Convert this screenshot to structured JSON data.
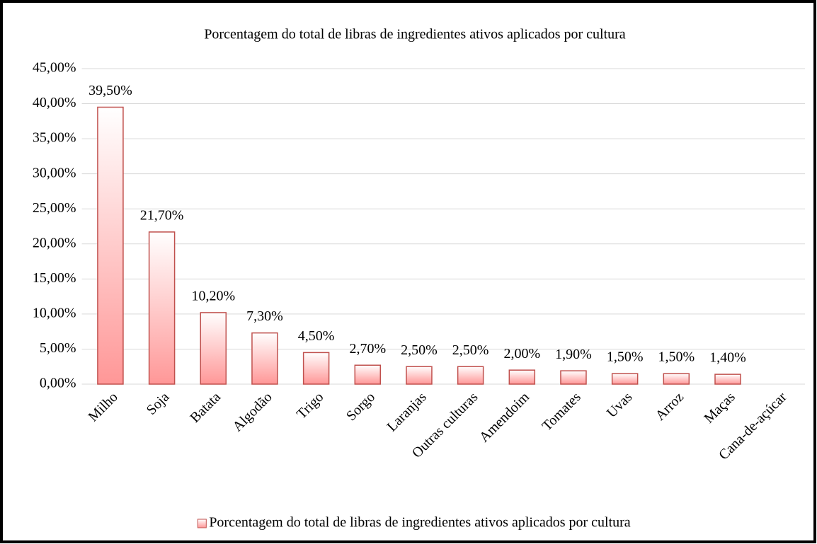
{
  "chart_data": {
    "type": "bar",
    "title": "Porcentagem do total de libras de ingredientes ativos aplicados por cultura",
    "categories": [
      "Milho",
      "Soja",
      "Batata",
      "Algodão",
      "Trigo",
      "Sorgo",
      "Laranjas",
      "Outras culturas",
      "Amendoim",
      "Tomates",
      "Uvas",
      "Arroz",
      "Maças",
      "Cana-de-açúcar"
    ],
    "series": [
      {
        "name": "Porcentagem do total de libras de ingredientes ativos aplicados por cultura",
        "color": "#ff9797",
        "edge_color": "#c0504d",
        "values": [
          39.5,
          21.7,
          10.2,
          7.3,
          4.5,
          2.7,
          2.5,
          2.5,
          2.0,
          1.9,
          1.5,
          1.5,
          1.4,
          null
        ],
        "value_labels": [
          "39,50%",
          "21,70%",
          "10,20%",
          "7,30%",
          "4,50%",
          "2,70%",
          "2,50%",
          "2,50%",
          "2,00%",
          "1,90%",
          "1,50%",
          "1,50%",
          "1,40%",
          null
        ]
      }
    ],
    "ylim": [
      0,
      45
    ],
    "yticks": [
      {
        "value": 0,
        "label": "0,00%"
      },
      {
        "value": 5,
        "label": "5,00%"
      },
      {
        "value": 10,
        "label": "10,00%"
      },
      {
        "value": 15,
        "label": "15,00%"
      },
      {
        "value": 20,
        "label": "20,00%"
      },
      {
        "value": 25,
        "label": "25,00%"
      },
      {
        "value": 30,
        "label": "30,00%"
      },
      {
        "value": 35,
        "label": "35,00%"
      },
      {
        "value": 40,
        "label": "40,00%"
      },
      {
        "value": 45,
        "label": "45,00%"
      }
    ],
    "grid": true,
    "legend": "bottom"
  }
}
